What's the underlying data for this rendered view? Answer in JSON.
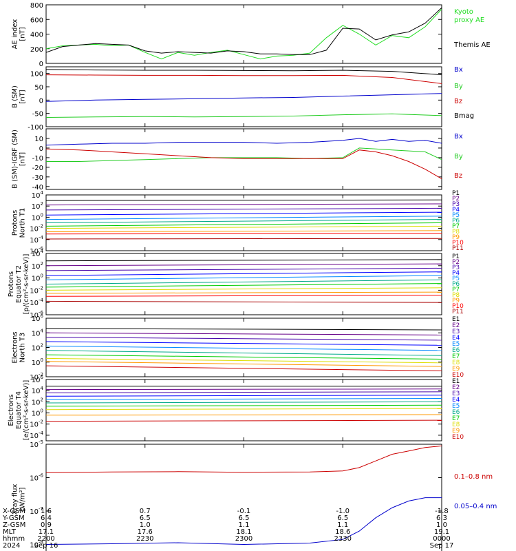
{
  "x_axis": {
    "label_rows": [
      "X-GSM",
      "Y-GSM",
      "Z-GSM",
      "MLT",
      "hhmm",
      "2024"
    ],
    "ticks": [
      {
        "values": [
          "1.6",
          "6.4",
          "0.9",
          "17.1",
          "2200",
          "Sep 16"
        ]
      },
      {
        "values": [
          "0.7",
          "6.5",
          "1.0",
          "17.6",
          "2230",
          ""
        ]
      },
      {
        "values": [
          "-0.1",
          "6.5",
          "1.1",
          "18.1",
          "2300",
          ""
        ]
      },
      {
        "values": [
          "-1.0",
          "6.5",
          "1.1",
          "18.6",
          "2330",
          ""
        ]
      },
      {
        "values": [
          "-1.8",
          "6.3",
          "1.0",
          "19.1",
          "0000",
          "Sep 17"
        ]
      }
    ]
  },
  "chart_data": [
    {
      "type": "line",
      "ylabel_lines": [
        "AE index",
        "[nT]"
      ],
      "ylim": [
        0,
        800
      ],
      "log": false,
      "yticks": [
        0,
        200,
        400,
        600,
        800
      ],
      "x": [
        0,
        5,
        10,
        15,
        20,
        25,
        30,
        35,
        40,
        45,
        50,
        55,
        60,
        65,
        70,
        75,
        80,
        85,
        90,
        95,
        100,
        105,
        110,
        115,
        120
      ],
      "series": [
        {
          "name": "Kyoto\nproxy AE",
          "color": "#22dd22",
          "values": [
            200,
            240,
            250,
            260,
            240,
            250,
            150,
            60,
            150,
            110,
            150,
            180,
            120,
            60,
            100,
            110,
            140,
            350,
            520,
            400,
            250,
            380,
            350,
            500,
            740
          ]
        },
        {
          "name": "Themis AE",
          "color": "#000000",
          "values": [
            150,
            230,
            250,
            270,
            260,
            250,
            170,
            140,
            160,
            150,
            140,
            170,
            160,
            130,
            130,
            120,
            120,
            180,
            480,
            470,
            320,
            390,
            430,
            550,
            760
          ]
        }
      ]
    },
    {
      "type": "line",
      "ylabel_lines": [
        "B (SM)",
        "[nT]"
      ],
      "ylim": [
        -100,
        125
      ],
      "log": false,
      "yticks": [
        -100,
        -50,
        0,
        50,
        100
      ],
      "x": [
        0,
        15,
        30,
        45,
        60,
        75,
        90,
        105,
        120
      ],
      "series": [
        {
          "name": "Bx",
          "color": "#0000cc",
          "values": [
            -5,
            0,
            3,
            5,
            8,
            10,
            15,
            20,
            25
          ]
        },
        {
          "name": "By",
          "color": "#22cc22",
          "values": [
            -65,
            -63,
            -62,
            -63,
            -62,
            -60,
            -55,
            -52,
            -58
          ]
        },
        {
          "name": "Bz",
          "color": "#cc0000",
          "values": [
            95,
            94,
            93,
            93,
            92,
            92,
            93,
            85,
            62
          ]
        },
        {
          "name": "Bmag",
          "color": "#000000",
          "values": [
            115,
            113,
            112,
            112,
            111,
            110,
            112,
            108,
            95
          ]
        }
      ]
    },
    {
      "type": "line",
      "ylabel_lines": [
        "B (SM)-IGRF (SM)",
        "[nT]"
      ],
      "ylim": [
        -43,
        20
      ],
      "log": false,
      "yticks": [
        -40,
        -30,
        -20,
        -10,
        0,
        10
      ],
      "x": [
        0,
        10,
        20,
        30,
        40,
        50,
        60,
        70,
        80,
        90,
        95,
        100,
        105,
        110,
        115,
        120
      ],
      "series": [
        {
          "name": "Bx",
          "color": "#0000cc",
          "values": [
            3,
            4,
            5,
            5,
            6,
            6,
            6,
            5,
            6,
            8,
            10,
            7,
            9,
            7,
            8,
            5
          ]
        },
        {
          "name": "By",
          "color": "#22cc22",
          "values": [
            -14,
            -14,
            -13,
            -12,
            -11,
            -10,
            -10,
            -10,
            -11,
            -10,
            0,
            -1,
            -2,
            -3,
            -4,
            -12
          ]
        },
        {
          "name": "Bz",
          "color": "#cc0000",
          "values": [
            -1,
            -2,
            -4,
            -6,
            -8,
            -10,
            -11,
            -11,
            -11,
            -11,
            -2,
            -4,
            -8,
            -14,
            -22,
            -32
          ]
        }
      ]
    },
    {
      "type": "line",
      "ylabel_lines": [
        "Protons",
        "North T1"
      ],
      "ylim": [
        -6,
        4
      ],
      "log": true,
      "ytick_labels": [
        {
          "exp": 4
        },
        {
          "exp": 2
        },
        {
          "exp": 0
        },
        {
          "exp": -2
        },
        {
          "exp": -4
        },
        {
          "exp": -6
        }
      ],
      "x": [
        0,
        120
      ],
      "series": [
        {
          "name": "P1",
          "color": "#000000",
          "values": [
            3.0,
            3.1
          ]
        },
        {
          "name": "P2",
          "color": "#660088",
          "values": [
            2.2,
            2.4
          ]
        },
        {
          "name": "P3",
          "color": "#4400aa",
          "values": [
            1.3,
            1.6
          ]
        },
        {
          "name": "P4",
          "color": "#0000ff",
          "values": [
            0.4,
            0.9
          ]
        },
        {
          "name": "P5",
          "color": "#0088ff",
          "values": [
            -0.4,
            0.2
          ]
        },
        {
          "name": "P6",
          "color": "#00aa88",
          "values": [
            -1.0,
            -0.4
          ]
        },
        {
          "name": "P7",
          "color": "#00cc00",
          "values": [
            -1.6,
            -1.0
          ]
        },
        {
          "name": "P8",
          "color": "#dddd00",
          "values": [
            -2.0,
            -1.6
          ]
        },
        {
          "name": "P9",
          "color": "#ff9900",
          "values": [
            -2.6,
            -2.4
          ]
        },
        {
          "name": "P10",
          "color": "#ff0000",
          "values": [
            -3.0,
            -2.9
          ]
        },
        {
          "name": "P11",
          "color": "#aa0000",
          "values": [
            -3.9,
            -3.8
          ]
        }
      ]
    },
    {
      "type": "line",
      "ylabel_lines": [
        "Protons",
        "Equator T2",
        "[p/(cm²-s-sr-keV)]"
      ],
      "ylim": [
        -6,
        4
      ],
      "log": true,
      "ytick_labels": [
        {
          "exp": 4
        },
        {
          "exp": 2
        },
        {
          "exp": 0
        },
        {
          "exp": -2
        },
        {
          "exp": -4
        },
        {
          "exp": -6
        }
      ],
      "x": [
        0,
        120
      ],
      "series": [
        {
          "name": "P1",
          "color": "#000000",
          "values": [
            2.8,
            3.0
          ]
        },
        {
          "name": "P2",
          "color": "#660088",
          "values": [
            2.0,
            2.3
          ]
        },
        {
          "name": "P3",
          "color": "#4400aa",
          "values": [
            1.2,
            1.6
          ]
        },
        {
          "name": "P4",
          "color": "#0000ff",
          "values": [
            0.4,
            1.0
          ]
        },
        {
          "name": "P5",
          "color": "#0088ff",
          "values": [
            -0.3,
            0.4
          ]
        },
        {
          "name": "P6",
          "color": "#00aa88",
          "values": [
            -1.0,
            -0.3
          ]
        },
        {
          "name": "P7",
          "color": "#00cc00",
          "values": [
            -1.5,
            -0.9
          ]
        },
        {
          "name": "P8",
          "color": "#dddd00",
          "values": [
            -2.0,
            -1.6
          ]
        },
        {
          "name": "P9",
          "color": "#ff9900",
          "values": [
            -2.5,
            -2.3
          ]
        },
        {
          "name": "P10",
          "color": "#ff0000",
          "values": [
            -3.0,
            -2.8
          ]
        },
        {
          "name": "P11",
          "color": "#aa0000",
          "values": [
            -3.8,
            -4.0
          ]
        }
      ]
    },
    {
      "type": "line",
      "ylabel_lines": [
        "Electrons",
        "North T3"
      ],
      "ylim": [
        -2,
        6
      ],
      "log": true,
      "ytick_labels": [
        {
          "exp": 6
        },
        {
          "exp": 4
        },
        {
          "exp": 2
        },
        {
          "exp": 0
        },
        {
          "exp": -2
        }
      ],
      "x": [
        0,
        120
      ],
      "series": [
        {
          "name": "E1",
          "color": "#000000",
          "values": [
            4.6,
            4.4
          ]
        },
        {
          "name": "E2",
          "color": "#660088",
          "values": [
            4.0,
            3.7
          ]
        },
        {
          "name": "E3",
          "color": "#4400aa",
          "values": [
            3.4,
            3.0
          ]
        },
        {
          "name": "E4",
          "color": "#0000ff",
          "values": [
            2.8,
            2.3
          ]
        },
        {
          "name": "E5",
          "color": "#0088ff",
          "values": [
            2.2,
            1.6
          ]
        },
        {
          "name": "E6",
          "color": "#00aa88",
          "values": [
            1.6,
            0.9
          ]
        },
        {
          "name": "E7",
          "color": "#00cc00",
          "values": [
            1.0,
            0.4
          ]
        },
        {
          "name": "E8",
          "color": "#dddd00",
          "values": [
            0.5,
            -0.1
          ]
        },
        {
          "name": "E9",
          "color": "#ff9900",
          "values": [
            0.1,
            -0.6
          ]
        },
        {
          "name": "E10",
          "color": "#cc0000",
          "values": [
            -0.5,
            -1.2
          ]
        }
      ]
    },
    {
      "type": "line",
      "ylabel_lines": [
        "Electrons",
        "Equator T4",
        "[e/(cm²-s-sr-keV)]"
      ],
      "ylim": [
        -5,
        6
      ],
      "log": true,
      "ytick_labels": [
        {
          "exp": 6
        },
        {
          "exp": 4
        },
        {
          "exp": 2
        },
        {
          "exp": 0
        },
        {
          "exp": -2
        },
        {
          "exp": -4
        }
      ],
      "x": [
        0,
        120
      ],
      "series": [
        {
          "name": "E1",
          "color": "#000000",
          "values": [
            4.8,
            4.8
          ]
        },
        {
          "name": "E2",
          "color": "#660088",
          "values": [
            4.2,
            4.3
          ]
        },
        {
          "name": "E3",
          "color": "#4400aa",
          "values": [
            3.6,
            3.8
          ]
        },
        {
          "name": "E4",
          "color": "#0000ff",
          "values": [
            3.0,
            3.2
          ]
        },
        {
          "name": "E5",
          "color": "#0088ff",
          "values": [
            2.4,
            2.6
          ]
        },
        {
          "name": "E6",
          "color": "#00aa88",
          "values": [
            1.8,
            2.0
          ]
        },
        {
          "name": "E7",
          "color": "#00cc00",
          "values": [
            1.2,
            1.4
          ]
        },
        {
          "name": "E8",
          "color": "#dddd00",
          "values": [
            0.6,
            0.8
          ]
        },
        {
          "name": "E9",
          "color": "#ff9900",
          "values": [
            -0.4,
            -0.3
          ]
        },
        {
          "name": "E10",
          "color": "#cc0000",
          "values": [
            -1.5,
            -1.3
          ]
        }
      ]
    },
    {
      "type": "line",
      "ylabel_lines": [
        "Xray flux",
        "[W/m²]"
      ],
      "ylim": [
        -8.3,
        -5
      ],
      "log": true,
      "ytick_labels": [
        {
          "exp": -5
        },
        {
          "exp": -6
        },
        {
          "exp": -7
        },
        {
          "exp": -8
        }
      ],
      "x": [
        0,
        20,
        40,
        60,
        80,
        90,
        95,
        100,
        105,
        110,
        115,
        120
      ],
      "series": [
        {
          "name": "0.1–0.8 nm",
          "color": "#cc0000",
          "values": [
            -5.85,
            -5.83,
            -5.82,
            -5.84,
            -5.83,
            -5.8,
            -5.7,
            -5.5,
            -5.3,
            -5.2,
            -5.1,
            -5.05
          ]
        },
        {
          "name": "0.05–0.4 nm",
          "color": "#0000cc",
          "values": [
            -8.0,
            -7.98,
            -7.95,
            -8.0,
            -7.96,
            -7.85,
            -7.6,
            -7.2,
            -6.9,
            -6.7,
            -6.6,
            -6.6
          ]
        }
      ]
    }
  ]
}
